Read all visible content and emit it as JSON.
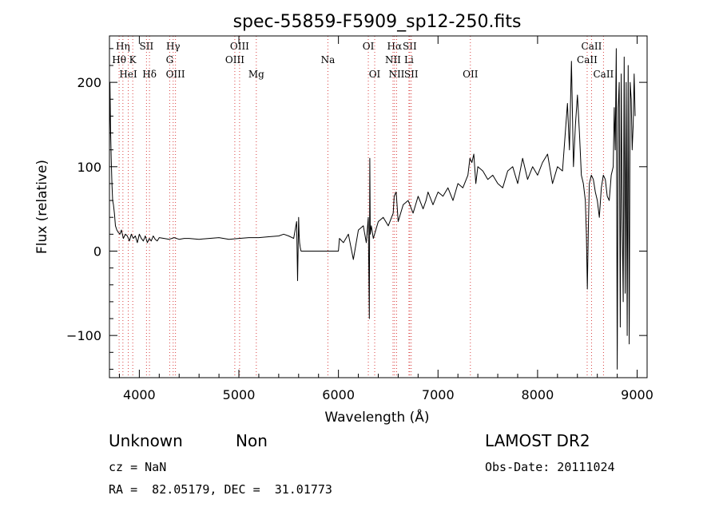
{
  "chart_data": {
    "type": "line",
    "title": "spec-55859-F5909_sp12-250.fits",
    "xlabel": "Wavelength (Å)",
    "ylabel": "Flux (relative)",
    "xlim": [
      3700,
      9100
    ],
    "ylim": [
      -150,
      255
    ],
    "xticks": [
      4000,
      5000,
      6000,
      7000,
      8000,
      9000
    ],
    "yticks": [
      -100,
      0,
      100,
      200
    ],
    "grid": false,
    "line_color": "#000000",
    "marker_color": "#d94040",
    "series": [
      {
        "x": [
          3700,
          3705,
          3712,
          3718,
          3725,
          3732,
          3740,
          3750,
          3760,
          3775,
          3790,
          3805,
          3820,
          3840,
          3860,
          3880,
          3900,
          3920,
          3940,
          3960,
          3980,
          4000,
          4020,
          4040,
          4060,
          4080,
          4100,
          4120,
          4140,
          4160,
          4180,
          4200,
          4250,
          4300,
          4350,
          4400,
          4450,
          4500,
          4600,
          4700,
          4800,
          4900,
          5000,
          5100,
          5200,
          5300,
          5400,
          5450,
          5500,
          5550,
          5580,
          5590,
          5600,
          5605,
          5610,
          5615,
          5620,
          5625,
          5630,
          5640,
          6000,
          6010,
          6050,
          6100,
          6150,
          6200,
          6250,
          6280,
          6300,
          6310,
          6315,
          6320,
          6330,
          6350,
          6400,
          6450,
          6500,
          6550,
          6560,
          6580,
          6600,
          6650,
          6700,
          6750,
          6800,
          6850,
          6880,
          6900,
          6950,
          7000,
          7050,
          7100,
          7150,
          7200,
          7250,
          7300,
          7320,
          7340,
          7360,
          7380,
          7400,
          7450,
          7500,
          7550,
          7600,
          7650,
          7700,
          7750,
          7800,
          7850,
          7900,
          7950,
          8000,
          8050,
          8100,
          8150,
          8200,
          8250,
          8300,
          8320,
          8340,
          8360,
          8380,
          8400,
          8420,
          8440,
          8460,
          8480,
          8490,
          8500,
          8510,
          8520,
          8540,
          8560,
          8580,
          8600,
          8620,
          8640,
          8660,
          8680,
          8700,
          8720,
          8740,
          8760,
          8770,
          8780,
          8790,
          8800,
          8810,
          8820,
          8830,
          8840,
          8850,
          8860,
          8870,
          8880,
          8890,
          8900,
          8910,
          8920,
          8930,
          8940,
          8950,
          8960,
          8970,
          8980
        ],
        "y": [
          120,
          200,
          140,
          110,
          80,
          60,
          55,
          45,
          30,
          25,
          22,
          20,
          25,
          15,
          20,
          18,
          12,
          20,
          15,
          18,
          10,
          20,
          15,
          12,
          18,
          10,
          15,
          12,
          18,
          14,
          12,
          16,
          15,
          14,
          16,
          14,
          15,
          15,
          14,
          15,
          16,
          14,
          15,
          16,
          16,
          17,
          18,
          20,
          18,
          15,
          35,
          -35,
          40,
          20,
          10,
          5,
          2,
          0,
          0,
          0,
          0,
          15,
          10,
          20,
          -10,
          25,
          30,
          10,
          40,
          -80,
          110,
          20,
          30,
          15,
          35,
          40,
          30,
          45,
          65,
          70,
          35,
          55,
          60,
          45,
          65,
          50,
          60,
          70,
          55,
          70,
          65,
          75,
          60,
          80,
          75,
          90,
          110,
          105,
          115,
          80,
          100,
          95,
          85,
          90,
          80,
          75,
          95,
          100,
          80,
          110,
          85,
          100,
          90,
          105,
          115,
          80,
          100,
          95,
          175,
          120,
          225,
          100,
          150,
          185,
          140,
          90,
          80,
          60,
          20,
          -45,
          30,
          80,
          90,
          85,
          70,
          60,
          40,
          75,
          90,
          85,
          65,
          60,
          90,
          100,
          170,
          120,
          240,
          -140,
          170,
          200,
          -90,
          210,
          40,
          -60,
          230,
          -50,
          200,
          -100,
          220,
          -110,
          200,
          180,
          120,
          150,
          210,
          160
        ]
      }
    ],
    "line_markers": [
      {
        "label": "Hη",
        "x": 3835,
        "row": 0
      },
      {
        "label": "Hθ",
        "x": 3797,
        "row": 1
      },
      {
        "label": "HeI",
        "x": 3889,
        "row": 2
      },
      {
        "label": "K",
        "x": 3934,
        "row": 1
      },
      {
        "label": "SII",
        "x": 4072,
        "row": 0
      },
      {
        "label": "Hδ",
        "x": 4102,
        "row": 2
      },
      {
        "label": "Hγ",
        "x": 4340,
        "row": 0
      },
      {
        "label": "G",
        "x": 4305,
        "row": 1
      },
      {
        "label": "OIII",
        "x": 4363,
        "row": 2
      },
      {
        "label": "OIII",
        "x": 5007,
        "row": 0
      },
      {
        "label": "OIII",
        "x": 4959,
        "row": 1
      },
      {
        "label": "Mg",
        "x": 5175,
        "row": 2
      },
      {
        "label": "Na",
        "x": 5894,
        "row": 1
      },
      {
        "label": "OI",
        "x": 6300,
        "row": 0
      },
      {
        "label": "OI",
        "x": 6364,
        "row": 2
      },
      {
        "label": "Hα",
        "x": 6563,
        "row": 0
      },
      {
        "label": "SII",
        "x": 6716,
        "row": 0
      },
      {
        "label": "NII",
        "x": 6548,
        "row": 1
      },
      {
        "label": "Li",
        "x": 6708,
        "row": 1
      },
      {
        "label": "NII",
        "x": 6584,
        "row": 2
      },
      {
        "label": "SII",
        "x": 6731,
        "row": 2
      },
      {
        "label": "OII",
        "x": 7325,
        "row": 2
      },
      {
        "label": "CaII",
        "x": 8542,
        "row": 0
      },
      {
        "label": "CaII",
        "x": 8498,
        "row": 1
      },
      {
        "label": "CaII",
        "x": 8662,
        "row": 2
      }
    ]
  },
  "info": {
    "class": "Unknown",
    "subclass": "Non",
    "survey": "LAMOST DR2",
    "cz": "cz = NaN",
    "obs_date": "Obs-Date: 20111024",
    "coords": "RA =  82.05179, DEC =  31.01773"
  }
}
